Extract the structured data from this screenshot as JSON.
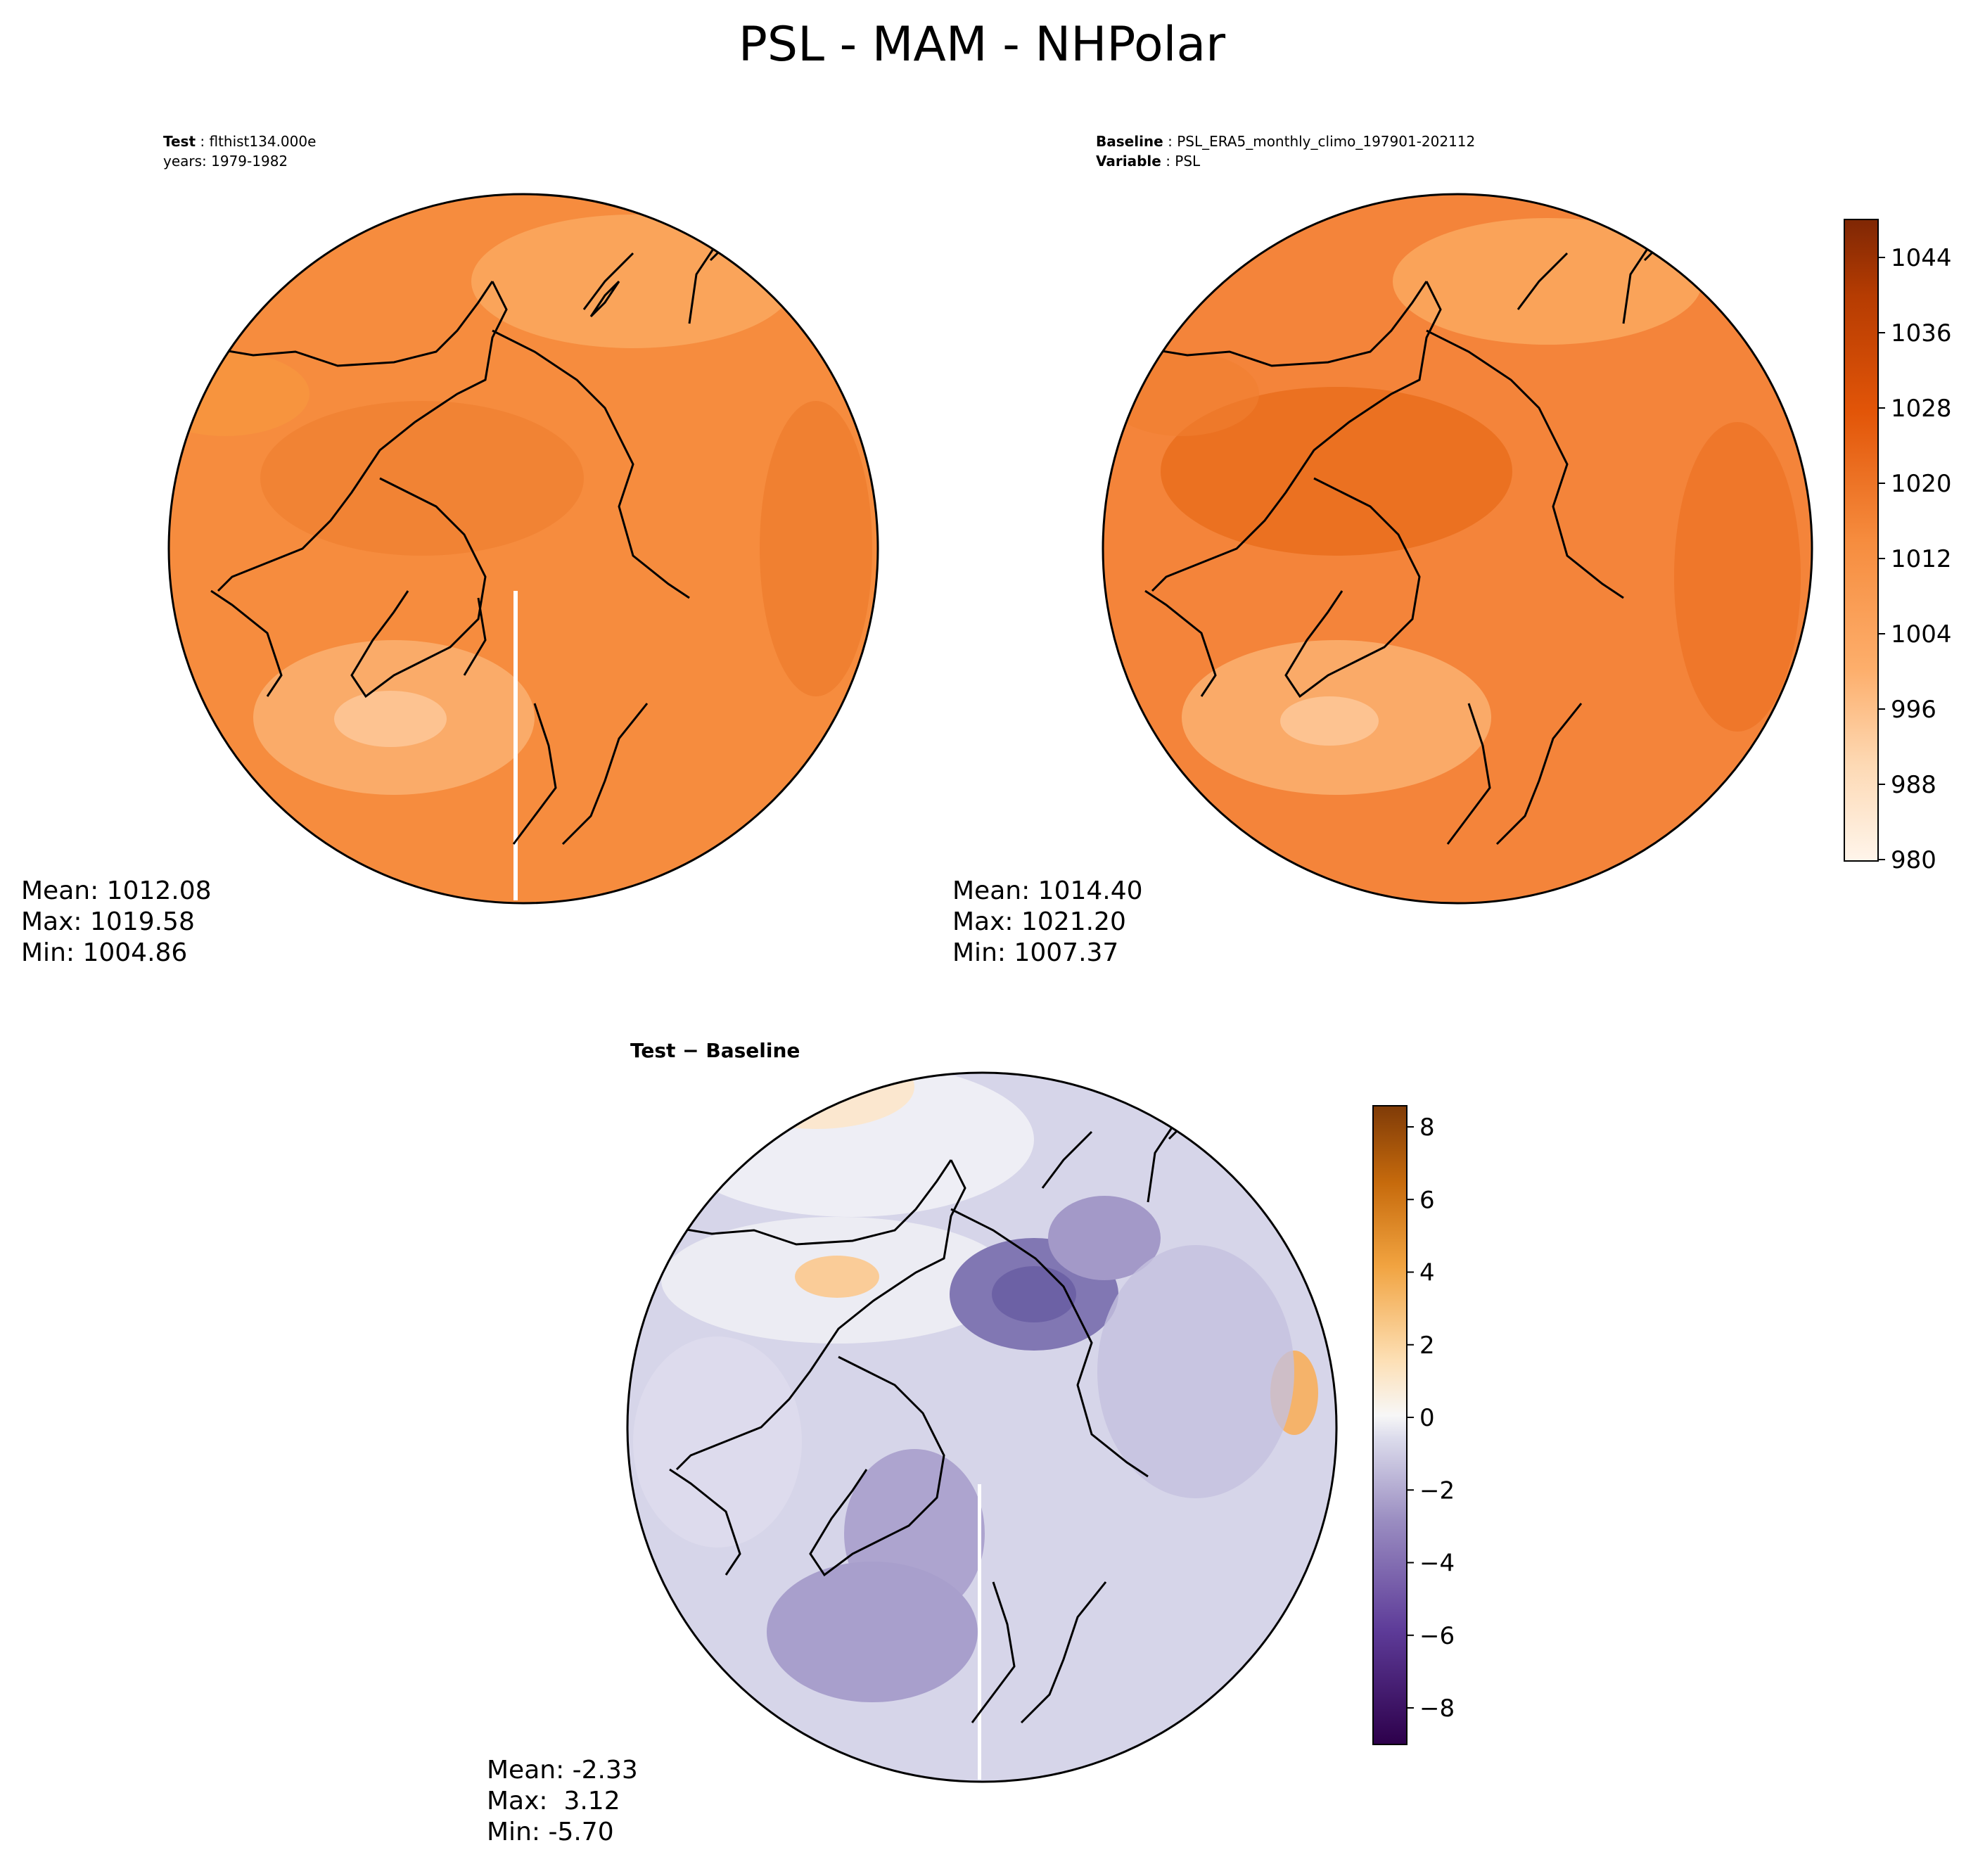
{
  "figure": {
    "title": "PSL - MAM - NHPolar"
  },
  "panels": {
    "test": {
      "label_key": "Test",
      "label_value": "flthist134.000e",
      "years": "years: 1979-1982",
      "mean": "Mean: 1012.08",
      "max": "Max: 1019.58",
      "min": "Min: 1004.86",
      "fill_color": "#f68c3e"
    },
    "baseline": {
      "label_key": "Baseline",
      "label_value": "PSL_ERA5_monthly_climo_197901-202112",
      "variable_key": "Variable",
      "variable_value": "PSL",
      "mean": "Mean: 1014.40",
      "max": "Max: 1021.20",
      "min": "Min: 1007.37",
      "fill_color": "#f4843a"
    },
    "diff": {
      "label": "Test − Baseline",
      "mean": "Mean: -2.33",
      "max": "Max:  3.12",
      "min": "Min: -5.70",
      "fill_color": "#cfcde6"
    }
  },
  "colorbars": {
    "main": {
      "ticks": [
        "1044",
        "1036",
        "1028",
        "1020",
        "1012",
        "1004",
        "996",
        "988",
        "980"
      ],
      "colormap": "Oranges",
      "range": [
        980,
        1048
      ]
    },
    "diff": {
      "ticks": [
        "8",
        "6",
        "4",
        "2",
        "0",
        "−2",
        "−4",
        "−6",
        "−8"
      ],
      "colormap": "PuOr_r",
      "range": [
        -9,
        8.5
      ]
    }
  },
  "chart_data": {
    "type": "heatmap",
    "projection": "north-polar-stereographic",
    "variable": "PSL",
    "season": "MAM",
    "panels": [
      {
        "name": "Test",
        "mean": 1012.08,
        "max": 1019.58,
        "min": 1004.86
      },
      {
        "name": "Baseline",
        "mean": 1014.4,
        "max": 1021.2,
        "min": 1007.37
      },
      {
        "name": "Test − Baseline",
        "mean": -2.33,
        "max": 3.12,
        "min": -5.7
      }
    ]
  }
}
